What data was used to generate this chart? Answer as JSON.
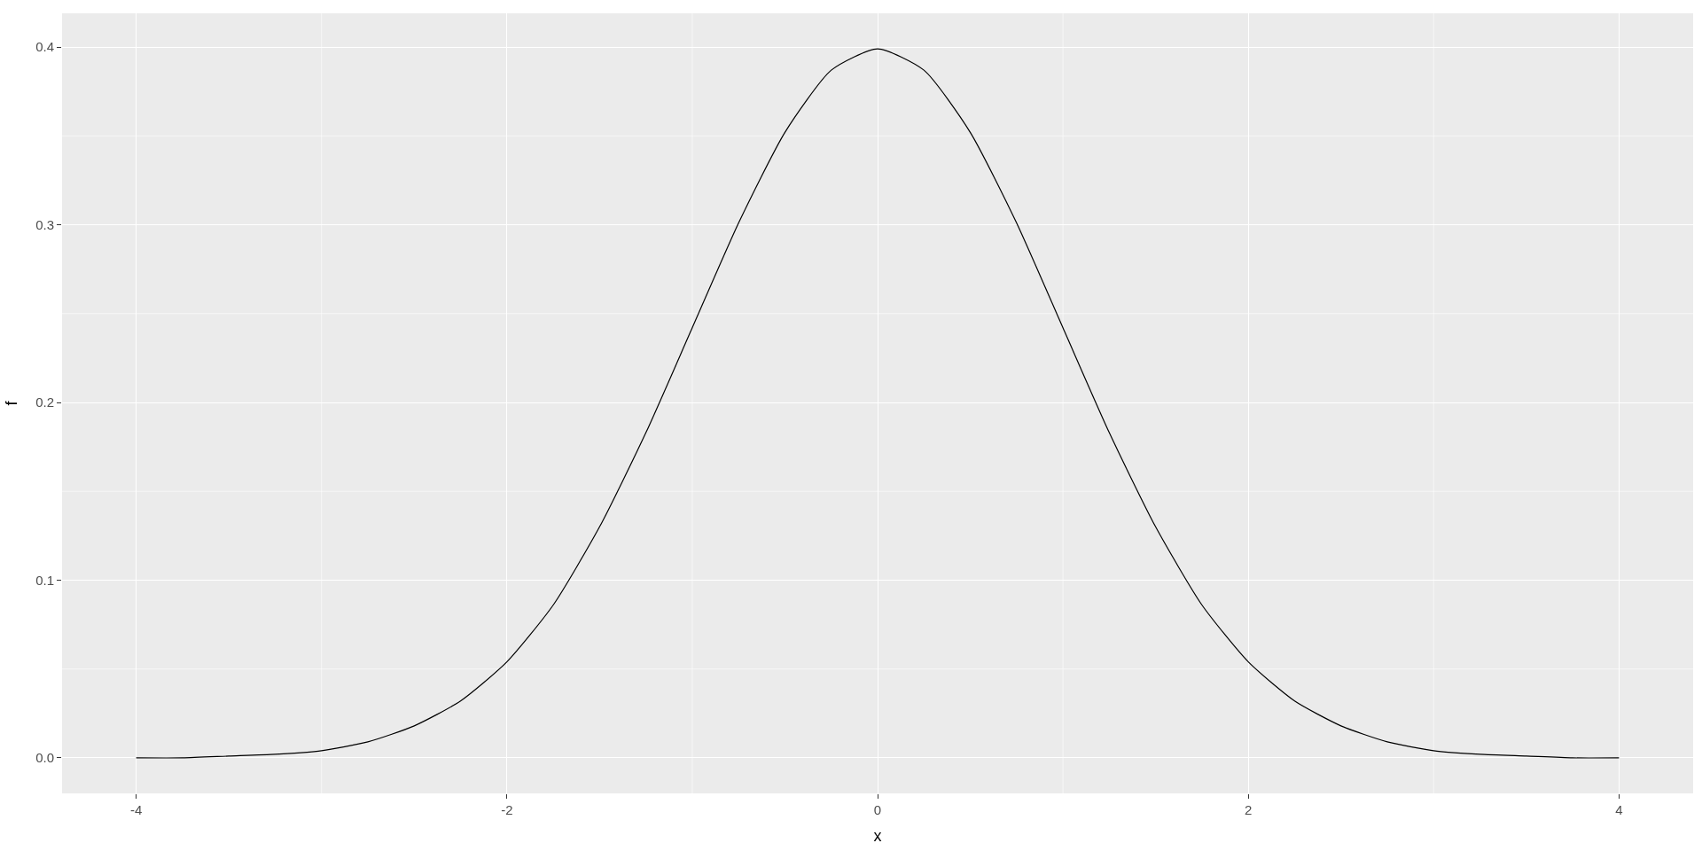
{
  "chart_data": {
    "type": "line",
    "xlabel": "x",
    "ylabel": "f",
    "x": [
      -4,
      -3.75,
      -3.5,
      -3.25,
      -3,
      -2.75,
      -2.5,
      -2.25,
      -2,
      -1.75,
      -1.5,
      -1.25,
      -1,
      -0.75,
      -0.5,
      -0.25,
      0,
      0.25,
      0.5,
      0.75,
      1,
      1.25,
      1.5,
      1.75,
      2,
      2.25,
      2.5,
      2.75,
      3,
      3.25,
      3.5,
      3.75,
      4
    ],
    "series": [
      {
        "color": "#000000",
        "values": [
          0.0,
          0.0,
          0.001,
          0.002,
          0.004,
          0.009,
          0.018,
          0.032,
          0.054,
          0.086,
          0.13,
          0.183,
          0.242,
          0.301,
          0.352,
          0.387,
          0.399,
          0.387,
          0.352,
          0.301,
          0.242,
          0.183,
          0.13,
          0.086,
          0.054,
          0.032,
          0.018,
          0.009,
          0.004,
          0.002,
          0.001,
          0.0,
          0.0
        ]
      }
    ],
    "xlim": [
      -4.4,
      4.4
    ],
    "ylim": [
      -0.02,
      0.419
    ],
    "xticks": [
      -4,
      -2,
      0,
      2,
      4
    ],
    "yticks": [
      {
        "value": 0,
        "label": "0.0"
      },
      {
        "value": 0.1,
        "label": "0.1"
      },
      {
        "value": 0.2,
        "label": "0.2"
      },
      {
        "value": 0.3,
        "label": "0.3"
      },
      {
        "value": 0.4,
        "label": "0.4"
      }
    ],
    "grid": true,
    "line_style": "solid",
    "marker": "none"
  }
}
